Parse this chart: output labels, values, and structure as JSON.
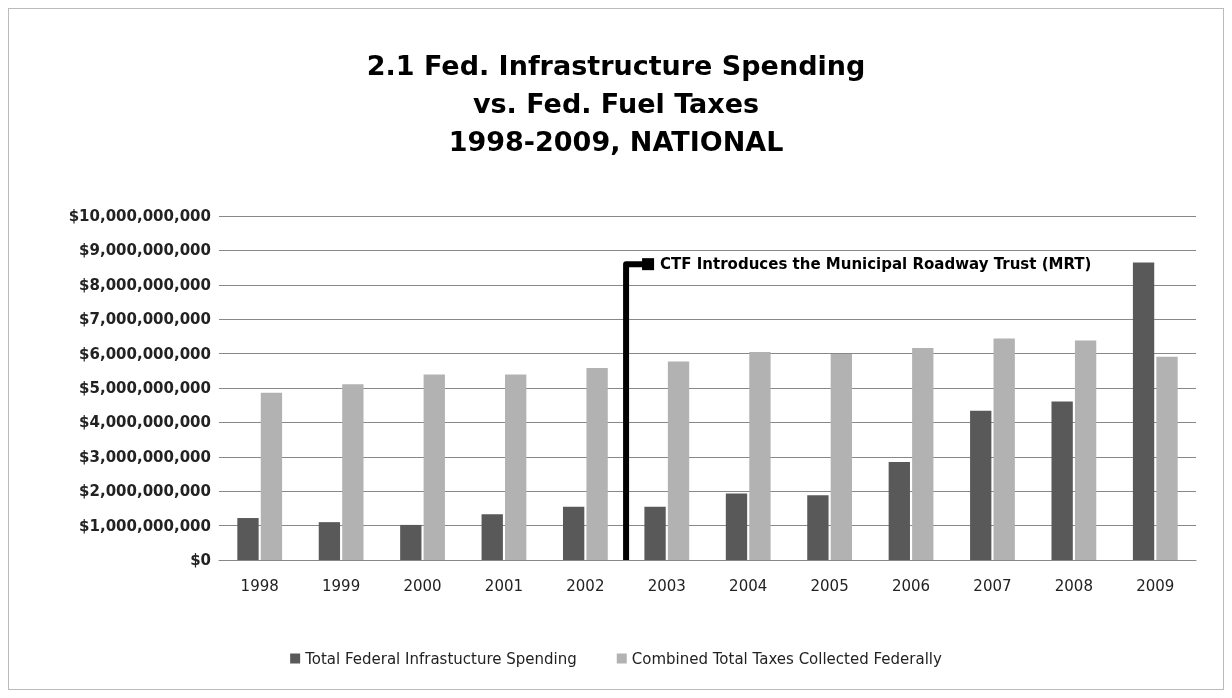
{
  "chart_data": {
    "type": "bar",
    "title": "2.1 Fed. Infrastructure Spending\nvs. Fed. Fuel Taxes\n1998-2009, NATIONAL",
    "categories": [
      "1998",
      "1999",
      "2000",
      "2001",
      "2002",
      "2003",
      "2004",
      "2005",
      "2006",
      "2007",
      "2008",
      "2009"
    ],
    "series": [
      {
        "name": "Total Federal Infrastucture Spending",
        "color": "#595959",
        "values": [
          1220000000,
          1100000000,
          1020000000,
          1330000000,
          1550000000,
          1550000000,
          1930000000,
          1880000000,
          2850000000,
          4340000000,
          4610000000,
          8650000000
        ]
      },
      {
        "name": "Combined Total Taxes Collected Federally",
        "color": "#b2b2b2",
        "values": [
          4860000000,
          5110000000,
          5390000000,
          5390000000,
          5580000000,
          5770000000,
          6050000000,
          5990000000,
          6160000000,
          6440000000,
          6380000000,
          5910000000
        ]
      }
    ],
    "ylim": [
      0,
      10000000000
    ],
    "yticks": [
      {
        "value": 0,
        "label": "$0"
      },
      {
        "value": 1000000000,
        "label": "$1,000,000,000"
      },
      {
        "value": 2000000000,
        "label": "$2,000,000,000"
      },
      {
        "value": 3000000000,
        "label": "$3,000,000,000"
      },
      {
        "value": 4000000000,
        "label": "$4,000,000,000"
      },
      {
        "value": 5000000000,
        "label": "$5,000,000,000"
      },
      {
        "value": 6000000000,
        "label": "$6,000,000,000"
      },
      {
        "value": 7000000000,
        "label": "$7,000,000,000"
      },
      {
        "value": 8000000000,
        "label": "$8,000,000,000"
      },
      {
        "value": 9000000000,
        "label": "$9,000,000,000"
      },
      {
        "value": 10000000000,
        "label": "$10,000,000,000"
      }
    ],
    "annotations": [
      "CTF Introduces the Municipal Roadway Trust (MRT)"
    ],
    "grid": "y",
    "legend": "bottom"
  }
}
